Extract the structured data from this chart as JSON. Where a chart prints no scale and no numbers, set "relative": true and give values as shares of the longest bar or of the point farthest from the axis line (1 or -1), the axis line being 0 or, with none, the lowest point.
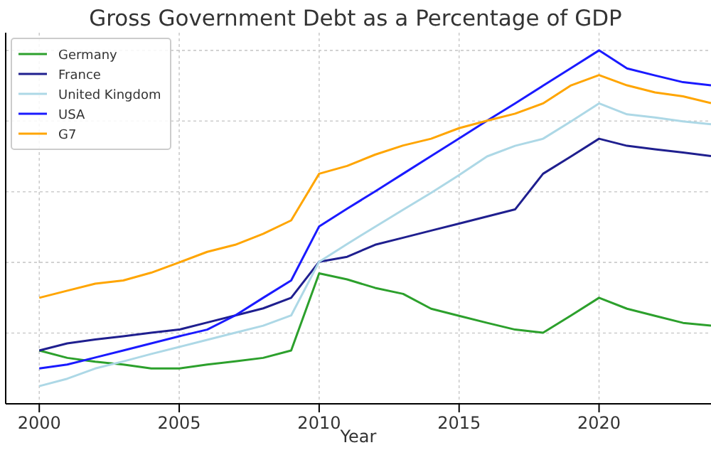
{
  "chart_data": {
    "type": "line",
    "title": "Gross Government Debt as a Percentage of GDP",
    "xlabel": "Year",
    "relative": true,
    "x": [
      2000,
      2001,
      2002,
      2003,
      2004,
      2005,
      2006,
      2007,
      2008,
      2009,
      2010,
      2011,
      2012,
      2013,
      2014,
      2015,
      2016,
      2017,
      2018,
      2019,
      2020,
      2021,
      2022,
      2023,
      2024
    ],
    "xlim": [
      1998.8,
      2024
    ],
    "xticks": [
      2000,
      2005,
      2010,
      2015,
      2020
    ],
    "grid": true,
    "legend": "top left",
    "line_style": "solid",
    "series": [
      {
        "name": "Germany",
        "color": "#2ca02c",
        "values": [
          0.151,
          0.13,
          0.119,
          0.111,
          0.1,
          0.1,
          0.111,
          0.12,
          0.13,
          0.151,
          0.369,
          0.352,
          0.328,
          0.311,
          0.269,
          0.249,
          0.229,
          0.21,
          0.201,
          0.25,
          0.3,
          0.269,
          0.249,
          0.229,
          0.221
        ]
      },
      {
        "name": "France",
        "color": "#1f1f8f",
        "values": [
          0.151,
          0.171,
          0.182,
          0.191,
          0.201,
          0.21,
          0.23,
          0.25,
          0.27,
          0.3,
          0.402,
          0.416,
          0.45,
          0.47,
          0.49,
          0.51,
          0.53,
          0.55,
          0.651,
          0.7,
          0.75,
          0.73,
          0.72,
          0.711,
          0.701
        ]
      },
      {
        "name": "United Kingdom",
        "color": "#add8e6",
        "values": [
          0.05,
          0.071,
          0.1,
          0.12,
          0.141,
          0.161,
          0.181,
          0.201,
          0.221,
          0.25,
          0.402,
          0.452,
          0.501,
          0.549,
          0.597,
          0.647,
          0.7,
          0.73,
          0.75,
          0.799,
          0.85,
          0.819,
          0.81,
          0.799,
          0.791
        ]
      },
      {
        "name": "USA",
        "color": "#1a1aff",
        "values": [
          0.1,
          0.111,
          0.131,
          0.151,
          0.171,
          0.191,
          0.21,
          0.25,
          0.3,
          0.349,
          0.502,
          0.552,
          0.601,
          0.651,
          0.701,
          0.751,
          0.801,
          0.85,
          0.9,
          0.95,
          1,
          0.949,
          0.929,
          0.91,
          0.901
        ]
      },
      {
        "name": "G7",
        "color": "#ffa500",
        "values": [
          0.3,
          0.32,
          0.34,
          0.349,
          0.371,
          0.4,
          0.43,
          0.45,
          0.481,
          0.519,
          0.651,
          0.673,
          0.705,
          0.731,
          0.75,
          0.78,
          0.801,
          0.821,
          0.85,
          0.901,
          0.93,
          0.901,
          0.881,
          0.87,
          0.851
        ]
      }
    ]
  }
}
